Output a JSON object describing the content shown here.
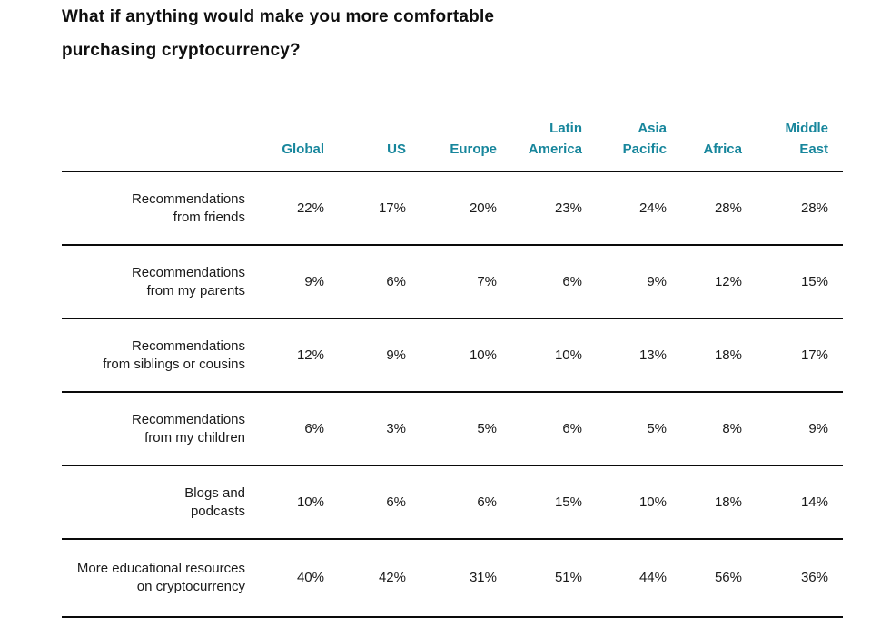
{
  "page": {
    "title": "What if anything would make you more comfortable\npurchasing cryptocurrency?"
  },
  "colors": {
    "accent": "#17869c",
    "text": "#1a1a1a",
    "rule": "#0a0a0a"
  },
  "table": {
    "header": [
      "Global",
      "US",
      "Europe",
      "Latin\nAmerica",
      "Asia\nPacific",
      "Africa",
      "Middle\nEast"
    ],
    "rows": [
      {
        "label": "Recommendations\nfrom friends",
        "values": [
          "22%",
          "17%",
          "20%",
          "23%",
          "24%",
          "28%",
          "28%"
        ]
      },
      {
        "label": "Recommendations\nfrom my parents",
        "values": [
          "9%",
          "6%",
          "7%",
          "6%",
          "9%",
          "12%",
          "15%"
        ]
      },
      {
        "label": "Recommendations\nfrom siblings or cousins",
        "values": [
          "12%",
          "9%",
          "10%",
          "10%",
          "13%",
          "18%",
          "17%"
        ]
      },
      {
        "label": "Recommendations\nfrom my children",
        "values": [
          "6%",
          "3%",
          "5%",
          "6%",
          "5%",
          "8%",
          "9%"
        ]
      },
      {
        "label": "Blogs and\npodcasts",
        "values": [
          "10%",
          "6%",
          "6%",
          "15%",
          "10%",
          "18%",
          "14%"
        ]
      },
      {
        "label": "More educational resources\non cryptocurrency",
        "values": [
          "40%",
          "42%",
          "31%",
          "51%",
          "44%",
          "56%",
          "36%"
        ]
      }
    ]
  },
  "chart_data": {
    "type": "table",
    "title": "What if anything would make you more comfortable purchasing cryptocurrency?",
    "columns": [
      "Global",
      "US",
      "Europe",
      "Latin America",
      "Asia Pacific",
      "Africa",
      "Middle East"
    ],
    "row_labels": [
      "Recommendations from friends",
      "Recommendations from my parents",
      "Recommendations from siblings or cousins",
      "Recommendations from my children",
      "Blogs and podcasts",
      "More educational resources on cryptocurrency"
    ],
    "values_pct": [
      [
        22,
        17,
        20,
        23,
        24,
        28,
        28
      ],
      [
        9,
        6,
        7,
        6,
        9,
        12,
        15
      ],
      [
        12,
        9,
        10,
        10,
        13,
        18,
        17
      ],
      [
        6,
        3,
        5,
        6,
        5,
        8,
        9
      ],
      [
        10,
        6,
        6,
        15,
        10,
        18,
        14
      ],
      [
        40,
        42,
        31,
        51,
        44,
        56,
        36
      ]
    ],
    "legend_position": "none",
    "grid": "horizontal-rules"
  }
}
